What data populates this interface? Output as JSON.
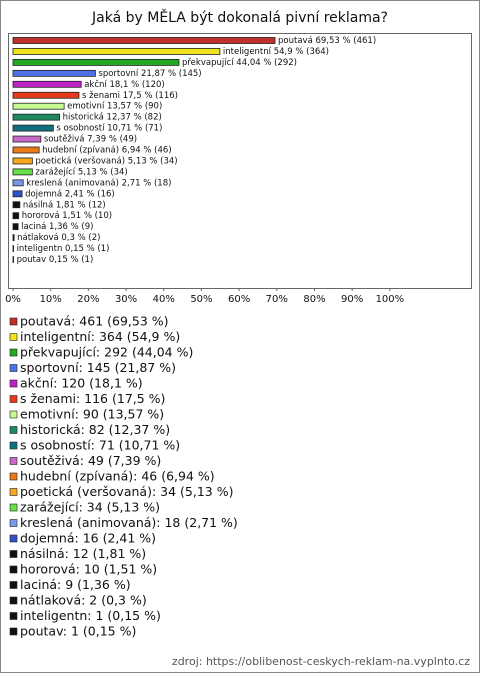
{
  "chart_data": {
    "type": "bar",
    "orientation": "horizontal",
    "title": "Jaká by MĚLA být dokonalá pivní reklama?",
    "categories": [
      "poutavá",
      "inteligentní",
      "překvapující",
      "sportovní",
      "akční",
      "s ženami",
      "emotivní",
      "historická",
      "s osobností",
      "soutěživá",
      "hudební (zpívaná)",
      "poetická (veršovaná)",
      "zarážející",
      "kreslená (animovaná)",
      "dojemná",
      "násilná",
      "hororová",
      "laciná",
      "nátlaková",
      "inteligentn",
      "poutav"
    ],
    "values": [
      69.53,
      54.9,
      44.04,
      21.87,
      18.1,
      17.5,
      13.57,
      12.37,
      10.71,
      7.39,
      6.94,
      5.13,
      5.13,
      2.71,
      2.41,
      1.81,
      1.51,
      1.36,
      0.3,
      0.15,
      0.15
    ],
    "value_labels": [
      "poutavá 69,53 % (461)",
      "inteligentní 54,9 % (364)",
      "překvapující 44,04 % (292)",
      "sportovní 21,87 % (145)",
      "akční 18,1 % (120)",
      "s ženami 17,5 % (116)",
      "emotivní 13,57 % (90)",
      "historická 12,37 % (82)",
      "s osobností 10,71 % (71)",
      "soutěživá 7,39 % (49)",
      "hudební (zpívaná) 6,94 % (46)",
      "poetická (veršovaná) 5,13 % (34)",
      "zarážející 5,13 % (34)",
      "kreslená (animovaná) 2,71 % (18)",
      "dojemná 2,41 % (16)",
      "násilná 1,81 % (12)",
      "hororová 1,51 % (10)",
      "laciná 1,36 % (9)",
      "nátlaková 0,3 % (2)",
      "inteligentn 0,15 % (1)",
      "poutav 0,15 % (1)"
    ],
    "legend_labels": [
      "poutavá: 461 (69,53 %)",
      "inteligentní: 364 (54,9 %)",
      "překvapující: 292 (44,04 %)",
      "sportovní: 145 (21,87 %)",
      "akční: 120 (18,1 %)",
      "s ženami: 116 (17,5 %)",
      "emotivní: 90 (13,57 %)",
      "historická: 82 (12,37 %)",
      "s osobností: 71 (10,71 %)",
      "soutěživá: 49 (7,39 %)",
      "hudební (zpívaná): 46 (6,94 %)",
      "poetická (veršovaná): 34 (5,13 %)",
      "zarážející: 34 (5,13 %)",
      "kreslená (animovaná): 18 (2,71 %)",
      "dojemná: 16 (2,41 %)",
      "násilná: 12 (1,81 %)",
      "hororová: 10 (1,51 %)",
      "laciná: 9 (1,36 %)",
      "nátlaková: 2 (0,3 %)",
      "inteligentn: 1 (0,15 %)",
      "poutav: 1 (0,15 %)"
    ],
    "colors": [
      "#c0302a",
      "#f2e21c",
      "#22aa22",
      "#5070e8",
      "#c020c8",
      "#e83a1a",
      "#c8f890",
      "#208a5e",
      "#107080",
      "#c868c8",
      "#ea7a18",
      "#f8a820",
      "#66e044",
      "#7898ec",
      "#2f50c8",
      "#111111",
      "#111111",
      "#111111",
      "#111111",
      "#111111",
      "#111111"
    ],
    "xlim": [
      0,
      121
    ],
    "xticks": [
      {
        "value": 0,
        "label": "0%"
      },
      {
        "value": 10,
        "label": "10%"
      },
      {
        "value": 20,
        "label": "20%"
      },
      {
        "value": 30,
        "label": "30%"
      },
      {
        "value": 40,
        "label": "40%"
      },
      {
        "value": 50,
        "label": "50%"
      },
      {
        "value": 60,
        "label": "60%"
      },
      {
        "value": 70,
        "label": "70%"
      },
      {
        "value": 80,
        "label": "80%"
      },
      {
        "value": 90,
        "label": "90%"
      },
      {
        "value": 100,
        "label": "100%"
      }
    ],
    "grid": false,
    "source": "zdroj: https://oblibenost-ceskych-reklam-na.vyplnto.cz"
  }
}
